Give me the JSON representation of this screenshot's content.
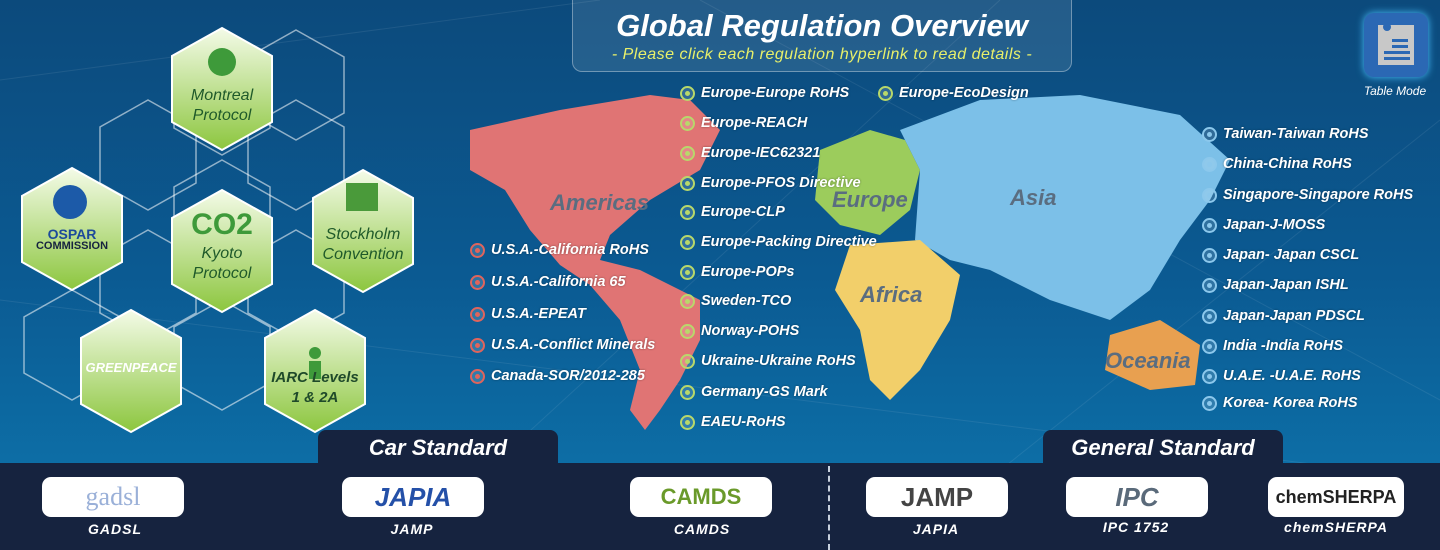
{
  "header": {
    "title": "Global Regulation Overview",
    "subtitle": "- Please click each regulation hyperlink to read details -"
  },
  "table_mode": {
    "label": "Table Mode",
    "icon": "clipboard-icon"
  },
  "continents": {
    "americas": "Americas",
    "europe": "Europe",
    "asia": "Asia",
    "africa": "Africa",
    "oceania": "Oceania"
  },
  "colors": {
    "americas": "#e07474",
    "europe": "#9ccc5c",
    "asia": "#7cc0e8",
    "africa": "#f2cf6a",
    "oceania": "#e8a050",
    "bottom_bar": "#16233f"
  },
  "conventions": [
    {
      "label": "Montreal Protocol",
      "line1": "Montreal",
      "line2": "Protocol"
    },
    {
      "label": "OSPAR COMMISSION",
      "line1": "OSPAR",
      "line2": "COMMISSION"
    },
    {
      "label": "Kyoto Protocol",
      "line1": "Kyoto",
      "line2": "Protocol",
      "logo": "CO2"
    },
    {
      "label": "Stockholm Convention",
      "line1": "Stockholm",
      "line2": "Convention"
    },
    {
      "label": "GREENPEACE",
      "line1": "GREENPEACE"
    },
    {
      "label": "IARC Levels 1 & 2A",
      "line1": "IARC Levels",
      "line2": "1 & 2A"
    }
  ],
  "europe_regs": [
    "Europe-Europe RoHS",
    "Europe-REACH",
    "Europe-IEC62321",
    "Europe-PFOS Directive",
    "Europe-CLP",
    "Europe-Packing Directive",
    "Europe-POPs",
    "Sweden-TCO",
    "Norway-POHS",
    "Ukraine-Ukraine RoHS",
    "Germany-GS Mark",
    "EAEU-RoHS"
  ],
  "europe_extra": "Europe-EcoDesign",
  "americas_regs": [
    "U.S.A.-California RoHS",
    "U.S.A.-California 65",
    "U.S.A.-EPEAT",
    "U.S.A.-Conflict Minerals",
    "Canada-SOR/2012-285"
  ],
  "asia_regs": [
    "Taiwan-Taiwan RoHS",
    "China-China RoHS",
    "Singapore-Singapore RoHS",
    "Japan-J-MOSS",
    "Japan- Japan CSCL",
    "Japan-Japan ISHL",
    "Japan-Japan PDSCL",
    "India -India RoHS",
    "U.A.E. -U.A.E. RoHS",
    "Korea- Korea RoHS"
  ],
  "car_standard": {
    "title": "Car Standard",
    "items": [
      {
        "logo": "gadsl",
        "label": "GADSL"
      },
      {
        "logo": "JAPIA",
        "label": "JAMP"
      },
      {
        "logo": "CAMDS",
        "label": "CAMDS"
      }
    ]
  },
  "general_standard": {
    "title": "General Standard",
    "items": [
      {
        "logo": "JAMP",
        "label": "JAPIA"
      },
      {
        "logo": "IPC",
        "label": "IPC 1752"
      },
      {
        "logo": "chemSHERPA",
        "label": "chemSHERPA"
      }
    ]
  }
}
